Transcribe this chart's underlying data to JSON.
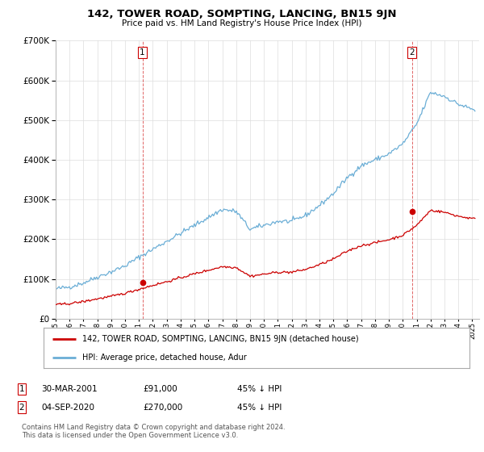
{
  "title": "142, TOWER ROAD, SOMPTING, LANCING, BN15 9JN",
  "subtitle": "Price paid vs. HM Land Registry's House Price Index (HPI)",
  "ylim": [
    0,
    700000
  ],
  "xlim_start": 1995.0,
  "xlim_end": 2025.5,
  "hpi_color": "#6baed6",
  "price_color": "#cc0000",
  "marker1_date": 2001.25,
  "marker1_price": 91000,
  "marker1_label": "1",
  "marker2_date": 2020.67,
  "marker2_price": 270000,
  "marker2_label": "2",
  "legend_line1": "142, TOWER ROAD, SOMPTING, LANCING, BN15 9JN (detached house)",
  "legend_line2": "HPI: Average price, detached house, Adur",
  "ann1_date": "30-MAR-2001",
  "ann1_price": "£91,000",
  "ann1_hpi": "45% ↓ HPI",
  "ann2_date": "04-SEP-2020",
  "ann2_price": "£270,000",
  "ann2_hpi": "45% ↓ HPI",
  "footer": "Contains HM Land Registry data © Crown copyright and database right 2024.\nThis data is licensed under the Open Government Licence v3.0.",
  "background_color": "#ffffff",
  "grid_color": "#dddddd"
}
